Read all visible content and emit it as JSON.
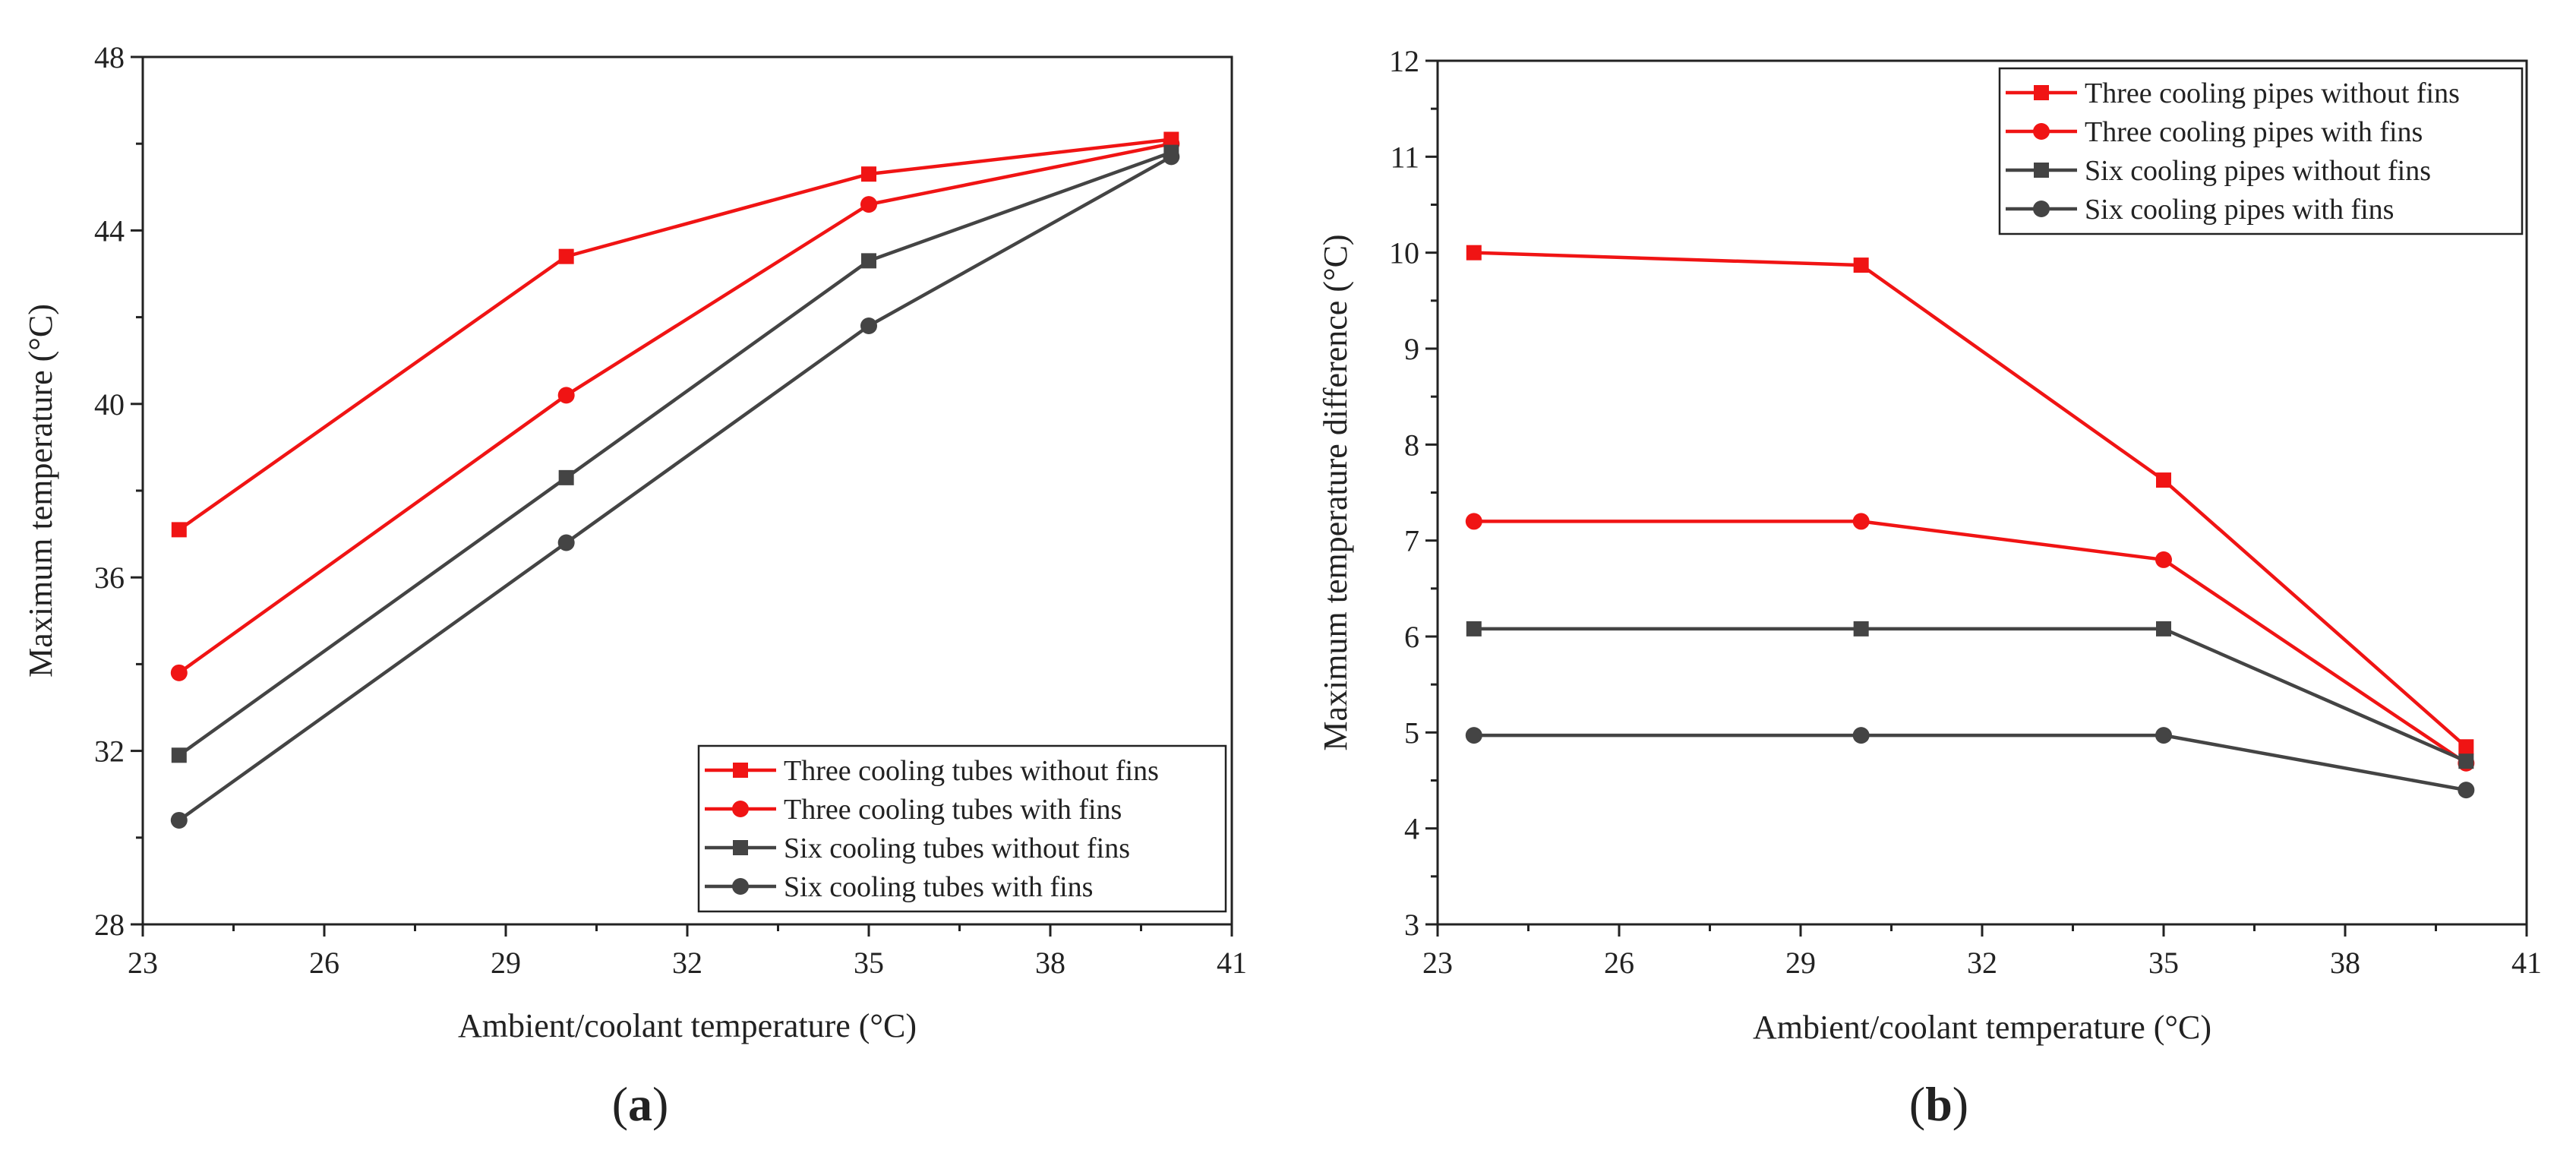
{
  "panels": [
    {
      "label": "a",
      "chart_data": {
        "type": "line",
        "title": "",
        "xlabel": "Ambient/coolant temperature (°C)",
        "ylabel": "Maximum temperature (°C)",
        "xlim": [
          23,
          41
        ],
        "ylim": [
          28,
          48
        ],
        "xticks": [
          23,
          26,
          29,
          32,
          35,
          38,
          41
        ],
        "yticks": [
          28,
          32,
          36,
          40,
          44,
          48
        ],
        "x": [
          23.6,
          30,
          35,
          40
        ],
        "grid": false,
        "legend_position": "bottom-right",
        "series": [
          {
            "name": "Three cooling tubes without fins",
            "color": "#f01414",
            "marker": "square",
            "values": [
              37.1,
              43.4,
              45.3,
              46.1
            ]
          },
          {
            "name": "Three cooling tubes with fins",
            "color": "#f01414",
            "marker": "circle",
            "values": [
              33.8,
              40.2,
              44.6,
              46.0
            ]
          },
          {
            "name": "Six cooling tubes without fins",
            "color": "#444444",
            "marker": "square",
            "values": [
              31.9,
              38.3,
              43.3,
              45.8
            ]
          },
          {
            "name": "Six cooling tubes with fins",
            "color": "#444444",
            "marker": "circle",
            "values": [
              30.4,
              36.8,
              41.8,
              45.7
            ]
          }
        ]
      }
    },
    {
      "label": "b",
      "chart_data": {
        "type": "line",
        "title": "",
        "xlabel": "Ambient/coolant temperature (°C)",
        "ylabel": "Maximum temperature difference (°C)",
        "xlim": [
          23,
          41
        ],
        "ylim": [
          3,
          12
        ],
        "xticks": [
          23,
          26,
          29,
          32,
          35,
          38,
          41
        ],
        "yticks": [
          3,
          4,
          5,
          6,
          7,
          8,
          9,
          10,
          11,
          12
        ],
        "x": [
          23.6,
          30,
          35,
          40
        ],
        "grid": false,
        "legend_position": "top-right",
        "series": [
          {
            "name": "Three cooling pipes without fins",
            "color": "#f01414",
            "marker": "square",
            "values": [
              10.0,
              9.87,
              7.63,
              4.85
            ]
          },
          {
            "name": "Three cooling pipes with fins",
            "color": "#f01414",
            "marker": "circle",
            "values": [
              7.2,
              7.2,
              6.8,
              4.68
            ]
          },
          {
            "name": "Six cooling pipes without fins",
            "color": "#444444",
            "marker": "square",
            "values": [
              6.08,
              6.08,
              6.08,
              4.7
            ]
          },
          {
            "name": "Six cooling pipes with fins",
            "color": "#444444",
            "marker": "circle",
            "values": [
              4.97,
              4.97,
              4.97,
              4.4
            ]
          }
        ]
      }
    }
  ]
}
